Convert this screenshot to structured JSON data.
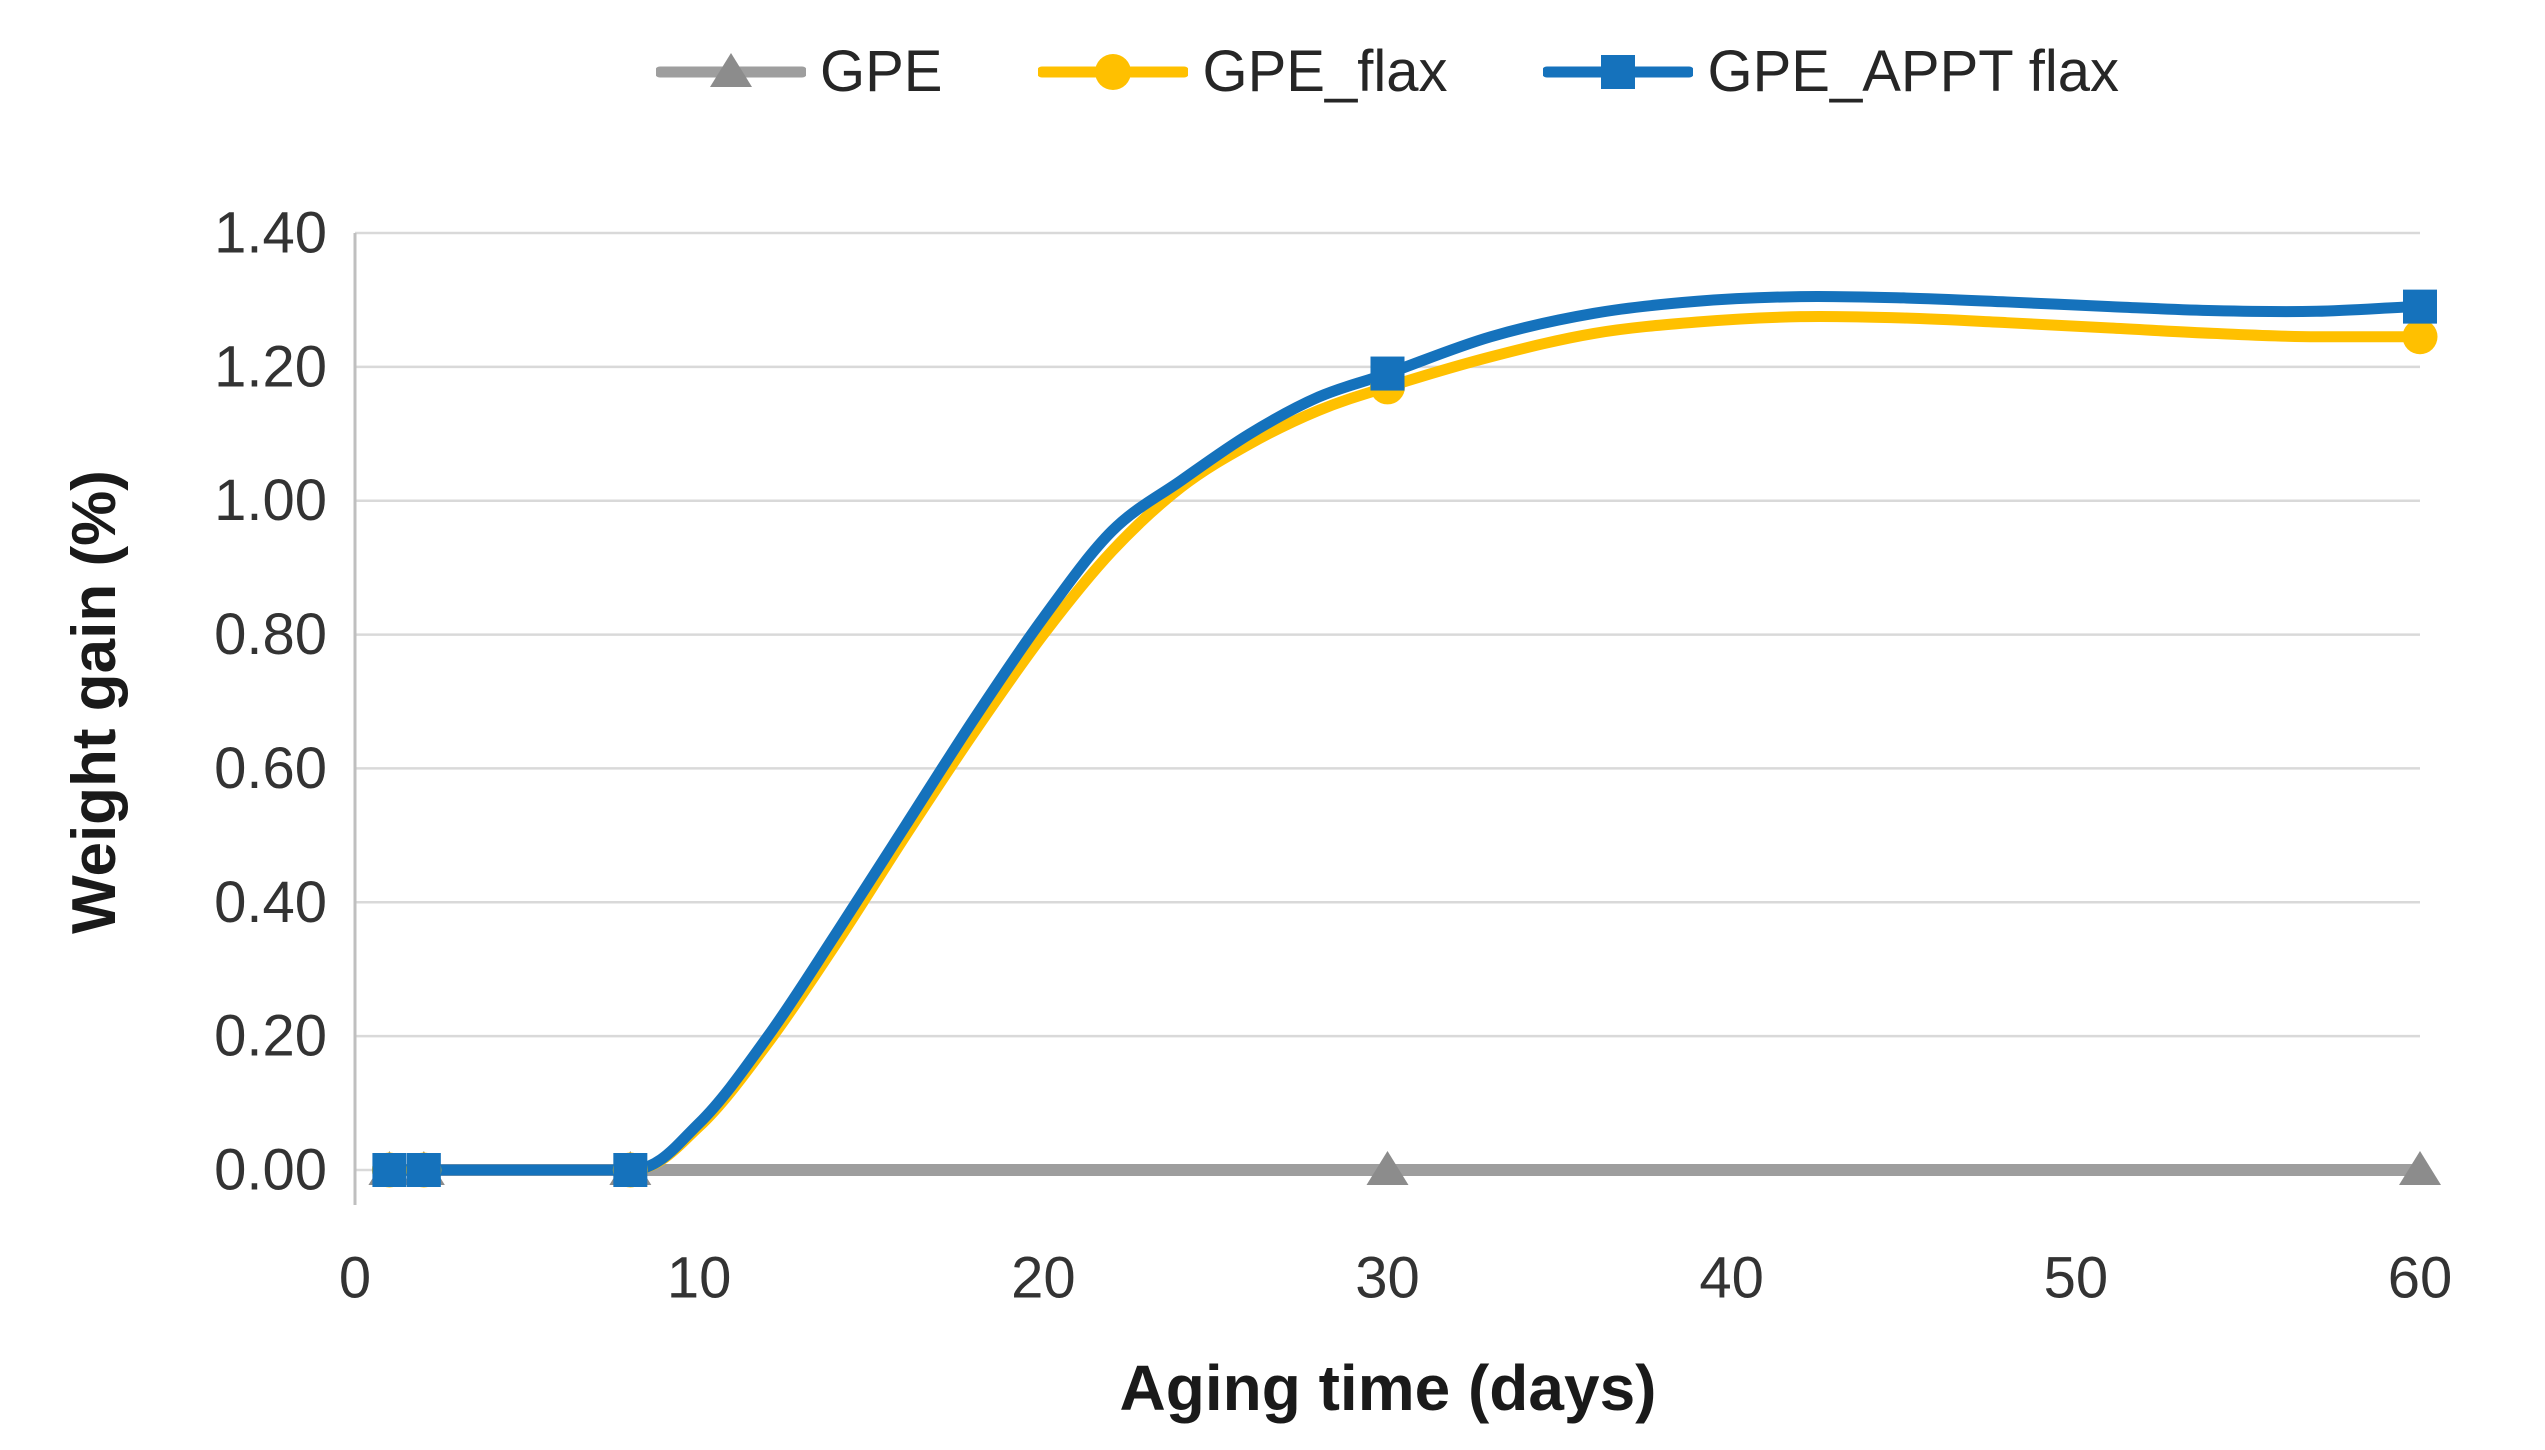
{
  "page": {
    "background": "#FFFFFF"
  },
  "chart_data": {
    "type": "line",
    "title": "",
    "xlabel": "Aging time (days)",
    "ylabel": "Weight gain (%)",
    "xlim": [
      0,
      60
    ],
    "ylim": [
      0,
      1.4
    ],
    "xticks": [
      {
        "v": 0,
        "label": "0"
      },
      {
        "v": 10,
        "label": "10"
      },
      {
        "v": 20,
        "label": "20"
      },
      {
        "v": 30,
        "label": "30"
      },
      {
        "v": 40,
        "label": "40"
      },
      {
        "v": 50,
        "label": "50"
      },
      {
        "v": 60,
        "label": "60"
      }
    ],
    "yticks": [
      {
        "v": 0.0,
        "label": "0.00"
      },
      {
        "v": 0.2,
        "label": "0.20"
      },
      {
        "v": 0.4,
        "label": "0.40"
      },
      {
        "v": 0.6,
        "label": "0.60"
      },
      {
        "v": 0.8,
        "label": "0.80"
      },
      {
        "v": 1.0,
        "label": "1.00"
      },
      {
        "v": 1.2,
        "label": "1.20"
      },
      {
        "v": 1.4,
        "label": "1.40"
      }
    ],
    "grid": "horizontal-major",
    "legend_position": "top",
    "colors": {
      "grid": "#D9D9D9",
      "axis_line": "#BFBFBF",
      "tick_text": "#333333",
      "title_text": "#1A1A1A"
    },
    "series": [
      {
        "name": "GPE",
        "color": "#9E9E9E",
        "marker_color": "#8C8C8C",
        "marker": "triangle",
        "line_width": 12,
        "points": [
          [
            1,
            0
          ],
          [
            2,
            0
          ],
          [
            8,
            0
          ],
          [
            30,
            0
          ],
          [
            60,
            0
          ]
        ],
        "curve": [
          [
            1,
            0
          ],
          [
            60,
            0
          ]
        ]
      },
      {
        "name": "GPE_flax",
        "color": "#FFC000",
        "marker_color": "#FFC000",
        "marker": "circle",
        "line_width": 11,
        "points": [
          [
            1,
            0
          ],
          [
            2,
            0
          ],
          [
            8,
            0
          ],
          [
            30,
            1.17
          ],
          [
            60,
            1.245
          ]
        ],
        "curve": [
          [
            1,
            0
          ],
          [
            2,
            0
          ],
          [
            5,
            0
          ],
          [
            8,
            0
          ],
          [
            10,
            0.065
          ],
          [
            12,
            0.19
          ],
          [
            14,
            0.34
          ],
          [
            16,
            0.5
          ],
          [
            18,
            0.655
          ],
          [
            20,
            0.8
          ],
          [
            22,
            0.925
          ],
          [
            24,
            1.02
          ],
          [
            26,
            1.085
          ],
          [
            28,
            1.135
          ],
          [
            30,
            1.17
          ],
          [
            33,
            1.215
          ],
          [
            36,
            1.25
          ],
          [
            39,
            1.267
          ],
          [
            42,
            1.275
          ],
          [
            45,
            1.273
          ],
          [
            48,
            1.266
          ],
          [
            51,
            1.258
          ],
          [
            54,
            1.25
          ],
          [
            57,
            1.245
          ],
          [
            60,
            1.245
          ]
        ]
      },
      {
        "name": "GPE_APPT flax",
        "color": "#1572BC",
        "marker_color": "#1572BC",
        "marker": "square",
        "line_width": 11,
        "points": [
          [
            1,
            0
          ],
          [
            2,
            0
          ],
          [
            8,
            0
          ],
          [
            30,
            1.19
          ],
          [
            60,
            1.29
          ]
        ],
        "curve": [
          [
            1,
            0
          ],
          [
            2,
            0
          ],
          [
            5,
            0
          ],
          [
            8,
            0
          ],
          [
            10,
            0.07
          ],
          [
            12,
            0.2
          ],
          [
            14,
            0.355
          ],
          [
            16,
            0.515
          ],
          [
            18,
            0.675
          ],
          [
            20,
            0.825
          ],
          [
            22,
            0.955
          ],
          [
            24,
            1.03
          ],
          [
            26,
            1.1
          ],
          [
            28,
            1.155
          ],
          [
            30,
            1.19
          ],
          [
            33,
            1.245
          ],
          [
            36,
            1.28
          ],
          [
            39,
            1.298
          ],
          [
            42,
            1.305
          ],
          [
            45,
            1.303
          ],
          [
            48,
            1.297
          ],
          [
            51,
            1.29
          ],
          [
            54,
            1.284
          ],
          [
            57,
            1.283
          ],
          [
            60,
            1.29
          ]
        ]
      }
    ]
  }
}
